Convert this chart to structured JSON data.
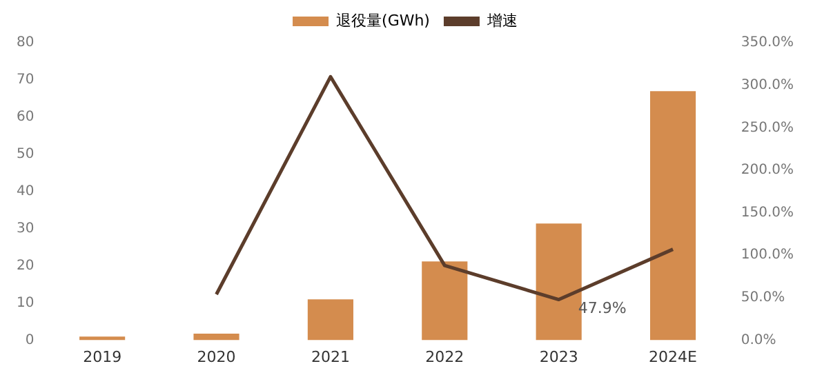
{
  "chart_data": {
    "type": "bar",
    "categories": [
      "2019",
      "2020",
      "2021",
      "2022",
      "2023",
      "2024E"
    ],
    "series": [
      {
        "name": "退役量(GWh)",
        "color": "#d48c4e",
        "values": [
          1.0,
          1.8,
          11,
          21.2,
          31.4,
          67
        ]
      },
      {
        "name": "增速",
        "type": "line",
        "axis": "y2",
        "color": "#5c3d2b",
        "values": [
          null,
          54,
          310,
          88,
          47.9,
          107
        ],
        "value_labels": [
          null,
          null,
          null,
          null,
          "47.9%",
          null
        ]
      }
    ],
    "ylim": [
      0,
      80
    ],
    "yticks": [
      0,
      10,
      20,
      30,
      40,
      50,
      60,
      70,
      80
    ],
    "y2lim": [
      0,
      350
    ],
    "y2ticks": [
      {
        "value": 0,
        "label": "0.0%"
      },
      {
        "value": 50,
        "label": "50.0%"
      },
      {
        "value": 100,
        "label": "100.0%"
      },
      {
        "value": 150,
        "label": "150.0%"
      },
      {
        "value": 200,
        "label": "200.0%"
      },
      {
        "value": 250,
        "label": "250.0%"
      },
      {
        "value": 300,
        "label": "300.0%"
      },
      {
        "value": 350,
        "label": "350.0%"
      }
    ],
    "legend": "top",
    "grid": false,
    "marker": "none"
  }
}
